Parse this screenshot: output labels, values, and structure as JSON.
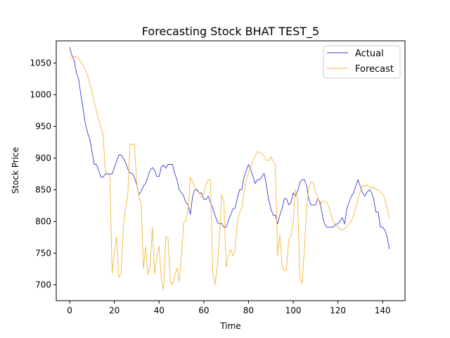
{
  "chart_data": {
    "type": "line",
    "title": "Forecasting Stock BHAT TEST_5",
    "xlabel": "Time",
    "ylabel": "Stock Price",
    "xlim": [
      -6,
      150
    ],
    "ylim": [
      675,
      1085
    ],
    "xticks": [
      0,
      20,
      40,
      60,
      80,
      100,
      120,
      140
    ],
    "yticks": [
      700,
      750,
      800,
      850,
      900,
      950,
      1000,
      1050
    ],
    "grid": false,
    "legend_position": "top-right",
    "series": [
      {
        "name": "Actual",
        "color": "#3b3bdc",
        "values": [
          1075,
          1062,
          1055,
          1035,
          1025,
          1000,
          978,
          955,
          940,
          930,
          910,
          890,
          890,
          880,
          870,
          870,
          875,
          875,
          875,
          875,
          885,
          895,
          905,
          905,
          900,
          893,
          883,
          876,
          876,
          869,
          858,
          842,
          848,
          856,
          860,
          871,
          881,
          885,
          881,
          871,
          871,
          886,
          889,
          884,
          890,
          890,
          890,
          876,
          866,
          850,
          845,
          840,
          830,
          826,
          811,
          840,
          850,
          850,
          845,
          845,
          835,
          835,
          840,
          830,
          821,
          810,
          800,
          796,
          797,
          791,
          791,
          801,
          810,
          820,
          821,
          837,
          850,
          850,
          870,
          880,
          890,
          882,
          871,
          860,
          866,
          866,
          871,
          876,
          858,
          835,
          820,
          810,
          810,
          796,
          810,
          820,
          836,
          836,
          826,
          830,
          845,
          840,
          848,
          862,
          866,
          866,
          856,
          835,
          826,
          826,
          826,
          836,
          830,
          811,
          796,
          791,
          791,
          791,
          791,
          796,
          796,
          801,
          806,
          796,
          821,
          830,
          840,
          845,
          856,
          866,
          855,
          845,
          840,
          846,
          850,
          846,
          835,
          815,
          815,
          791,
          791,
          786,
          776,
          756
        ]
      },
      {
        "name": "Forecast",
        "color": "#f5b73b",
        "values": [
          1058,
          1058,
          1060,
          1060,
          1056,
          1052,
          1046,
          1040,
          1030,
          1018,
          1004,
          988,
          974,
          960,
          948,
          935,
          878,
          876,
          870,
          718,
          750,
          776,
          712,
          718,
          790,
          822,
          843,
          923,
          921,
          922,
          860,
          840,
          826,
          726,
          760,
          716,
          730,
          791,
          717,
          745,
          761,
          708,
          692,
          776,
          773,
          706,
          700,
          713,
          727,
          705,
          744,
          798,
          801,
          819,
          870,
          862,
          854,
          848,
          845,
          838,
          845,
          859,
          866,
          865,
          720,
          700,
          728,
          770,
          842,
          831,
          728,
          745,
          756,
          746,
          753,
          800,
          814,
          821,
          846,
          866,
          876,
          886,
          895,
          904,
          911,
          908,
          907,
          903,
          896,
          896,
          902,
          895,
          890,
          746,
          778,
          729,
          722,
          724,
          772,
          777,
          800,
          850,
          834,
          713,
          702,
          758,
          820,
          854,
          863,
          860,
          846,
          838,
          825,
          832,
          832,
          830,
          822,
          810,
          798,
          794,
          791,
          788,
          786,
          789,
          792,
          797,
          801,
          810,
          822,
          836,
          847,
          857,
          855,
          858,
          856,
          851,
          855,
          850,
          850,
          846,
          844,
          835,
          820,
          806
        ]
      }
    ]
  }
}
